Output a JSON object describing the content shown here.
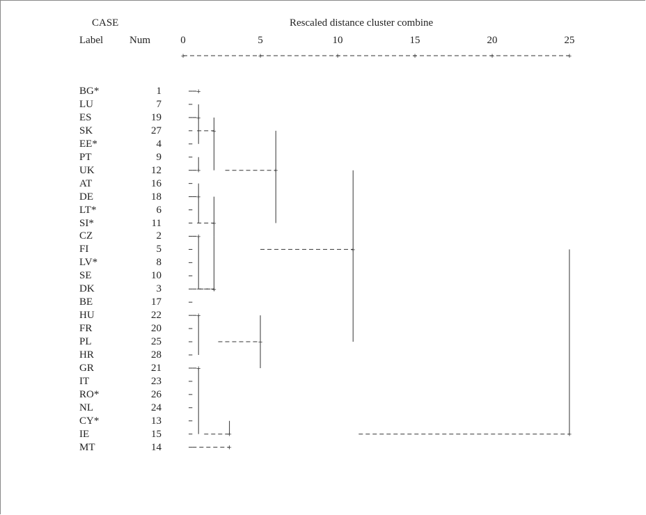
{
  "header": {
    "case_label": "CASE",
    "title": "Rescaled distance cluster combine",
    "col_label": "Label",
    "col_num": "Num",
    "ticks": [
      "0",
      "5",
      "10",
      "15",
      "20",
      "25"
    ]
  },
  "rows": [
    {
      "label": "BG*",
      "num": "1"
    },
    {
      "label": "LU",
      "num": "7"
    },
    {
      "label": "ES",
      "num": "19"
    },
    {
      "label": "SK",
      "num": "27"
    },
    {
      "label": "EE*",
      "num": "4"
    },
    {
      "label": "PT",
      "num": "9"
    },
    {
      "label": "UK",
      "num": "12"
    },
    {
      "label": "AT",
      "num": "16"
    },
    {
      "label": "DE",
      "num": "18"
    },
    {
      "label": "LT*",
      "num": "6"
    },
    {
      "label": "SI*",
      "num": "11"
    },
    {
      "label": "CZ",
      "num": "2"
    },
    {
      "label": "FI",
      "num": "5"
    },
    {
      "label": "LV*",
      "num": "8"
    },
    {
      "label": "SE",
      "num": "10"
    },
    {
      "label": "DK",
      "num": "3"
    },
    {
      "label": "BE",
      "num": "17"
    },
    {
      "label": "HU",
      "num": "22"
    },
    {
      "label": "FR",
      "num": "20"
    },
    {
      "label": "PL",
      "num": "25"
    },
    {
      "label": "HR",
      "num": "28"
    },
    {
      "label": "GR",
      "num": "21"
    },
    {
      "label": "IT",
      "num": "23"
    },
    {
      "label": "RO*",
      "num": "26"
    },
    {
      "label": "NL",
      "num": "24"
    },
    {
      "label": "CY*",
      "num": "13"
    },
    {
      "label": "IE",
      "num": "15"
    },
    {
      "label": "MT",
      "num": "14"
    }
  ],
  "merges": [
    {
      "rows": [
        1,
        2,
        3,
        4
      ],
      "d": 1,
      "trunk_row": 2
    },
    {
      "rows": [
        5,
        6
      ],
      "d": 1,
      "trunk_row": 6
    },
    {
      "rows": [
        7,
        8,
        9,
        10
      ],
      "d": 1,
      "trunk_row": 8
    },
    {
      "rows": [
        11,
        12,
        13,
        14,
        15
      ],
      "d": 1,
      "trunk_row": 11
    },
    {
      "rows": [
        17,
        18,
        19,
        20
      ],
      "d": 1,
      "trunk_row": 17
    },
    {
      "rows": [
        21,
        22,
        23,
        24,
        25,
        26
      ],
      "d": 1,
      "trunk_row": 21
    },
    {
      "rows": [
        2,
        6
      ],
      "d": 2,
      "trunk_row": 3
    },
    {
      "rows": [
        8,
        11
      ],
      "d": 2,
      "trunk_row": 10
    },
    {
      "rows": [
        11,
        15
      ],
      "d": 2,
      "trunk_row": 15
    },
    {
      "rows": [
        25,
        26
      ],
      "d": 3,
      "trunk_row": 26
    },
    {
      "rows": [
        17,
        21
      ],
      "d": 5,
      "trunk_row": 19
    },
    {
      "rows": [
        3,
        10
      ],
      "d": 6,
      "trunk_row": 6
    },
    {
      "rows": [
        6,
        19
      ],
      "d": 11,
      "trunk_row": 12
    },
    {
      "rows": [
        12,
        26
      ],
      "d": 25,
      "trunk_row": 26
    }
  ],
  "leaf_stubs": [
    {
      "row": 0,
      "to": 1
    },
    {
      "row": 15,
      "to": 2
    },
    {
      "row": 27,
      "to": 3
    }
  ]
}
